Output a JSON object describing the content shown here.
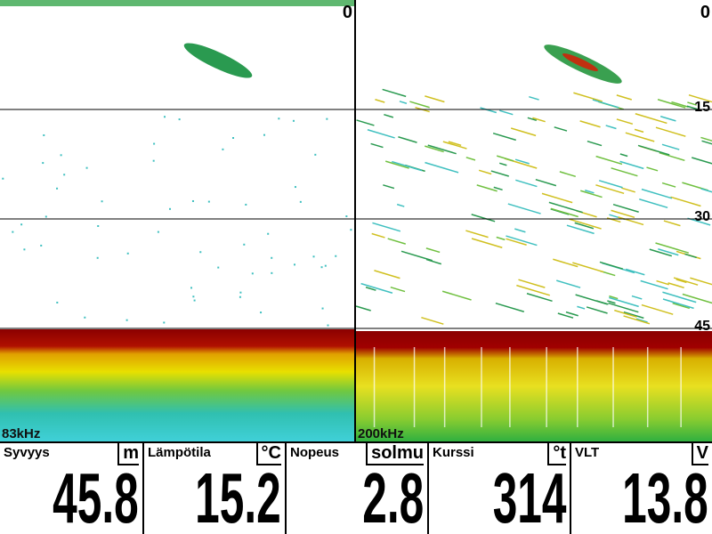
{
  "left_panel": {
    "frequency": "83kHz",
    "depth_label": "0"
  },
  "right_panel": {
    "frequency": "200kHz",
    "depth_scale": [
      "0",
      "15",
      "30",
      "45"
    ]
  },
  "data_boxes": [
    {
      "label": "Syvyys",
      "unit": "m",
      "value": 45.8
    },
    {
      "label": "Lämpötila",
      "unit": "°C",
      "value": 15.2
    },
    {
      "label": "Nopeus",
      "unit": "solmu",
      "value": 2.8
    },
    {
      "label": "Kurssi",
      "unit": "°t",
      "value": 314
    },
    {
      "label": "VLT",
      "unit": "V",
      "value": 13.8
    }
  ]
}
